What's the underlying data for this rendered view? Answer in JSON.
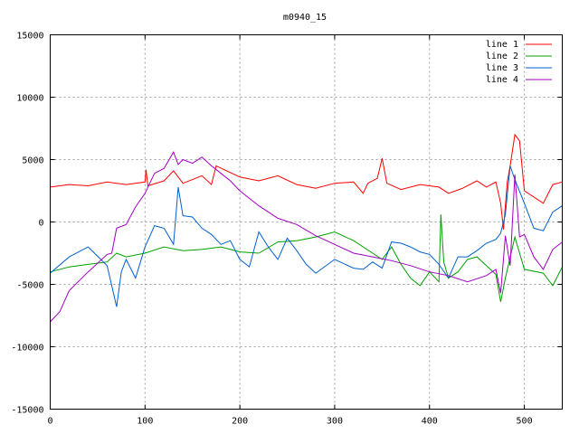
{
  "chart_data": {
    "type": "line",
    "title": "m0940_15",
    "xlabel": "",
    "ylabel": "",
    "xlim": [
      0,
      540
    ],
    "ylim": [
      -15000,
      15000
    ],
    "xticks": [
      0,
      100,
      200,
      300,
      400,
      500
    ],
    "yticks": [
      -15000,
      -10000,
      -5000,
      0,
      5000,
      10000,
      15000
    ],
    "grid": true,
    "legend_position": "top-right",
    "series": [
      {
        "name": "line 1",
        "color": "#ff0000",
        "x": [
          0,
          20,
          40,
          60,
          80,
          100,
          101,
          103,
          120,
          130,
          140,
          160,
          170,
          175,
          200,
          220,
          240,
          260,
          280,
          300,
          320,
          330,
          335,
          345,
          350,
          355,
          370,
          390,
          410,
          420,
          435,
          450,
          460,
          470,
          475,
          478,
          482,
          485,
          490,
          495,
          500,
          520,
          530,
          540
        ],
        "y": [
          2800,
          3000,
          2900,
          3200,
          3000,
          3200,
          4200,
          2900,
          3300,
          4100,
          3100,
          3700,
          3000,
          4500,
          3600,
          3300,
          3700,
          3000,
          2700,
          3100,
          3200,
          2300,
          3100,
          3500,
          5100,
          3100,
          2600,
          3000,
          2800,
          2300,
          2700,
          3300,
          2800,
          3200,
          1500,
          -600,
          3200,
          4500,
          7000,
          6500,
          2500,
          1500,
          3000,
          3200
        ]
      },
      {
        "name": "line 2",
        "color": "#00a000",
        "x": [
          0,
          20,
          40,
          60,
          70,
          80,
          100,
          120,
          140,
          160,
          180,
          200,
          220,
          240,
          260,
          280,
          300,
          320,
          340,
          350,
          360,
          370,
          380,
          390,
          400,
          410,
          412,
          415,
          420,
          430,
          440,
          450,
          460,
          470,
          475,
          480,
          490,
          500,
          520,
          530,
          540
        ],
        "y": [
          -4000,
          -3600,
          -3400,
          -3200,
          -2500,
          -2800,
          -2500,
          -2000,
          -2300,
          -2200,
          -2000,
          -2400,
          -2500,
          -1600,
          -1500,
          -1200,
          -800,
          -1500,
          -2500,
          -3000,
          -2000,
          -3400,
          -4500,
          -5100,
          -4000,
          -4800,
          600,
          -3200,
          -4500,
          -4000,
          -3000,
          -2800,
          -3500,
          -4200,
          -6400,
          -4500,
          -1200,
          -3800,
          -4100,
          -5100,
          -3600
        ]
      },
      {
        "name": "line 3",
        "color": "#0060d0",
        "x": [
          0,
          20,
          40,
          60,
          70,
          75,
          80,
          90,
          100,
          110,
          120,
          130,
          135,
          140,
          150,
          160,
          170,
          180,
          190,
          200,
          210,
          220,
          230,
          240,
          250,
          260,
          270,
          280,
          300,
          320,
          330,
          340,
          350,
          360,
          370,
          380,
          390,
          400,
          410,
          420,
          430,
          440,
          450,
          460,
          470,
          475,
          480,
          485,
          490,
          500,
          510,
          520,
          530,
          540
        ],
        "y": [
          -4100,
          -2800,
          -2000,
          -3500,
          -6800,
          -4000,
          -3000,
          -4500,
          -2000,
          -300,
          -500,
          -1800,
          2800,
          500,
          400,
          -500,
          -1000,
          -1800,
          -1500,
          -3000,
          -3600,
          -800,
          -2000,
          -3000,
          -1300,
          -2300,
          -3400,
          -4100,
          -3000,
          -3700,
          -3800,
          -3200,
          -3700,
          -1600,
          -1700,
          -2000,
          -2400,
          -2600,
          -3400,
          -4500,
          -2800,
          -2800,
          -2300,
          -1700,
          -1400,
          -900,
          600,
          4500,
          3400,
          1500,
          -500,
          -700,
          800,
          1300
        ]
      },
      {
        "name": "line 4",
        "color": "#a000c0",
        "x": [
          0,
          10,
          20,
          40,
          60,
          65,
          70,
          80,
          90,
          100,
          110,
          120,
          130,
          135,
          140,
          150,
          160,
          170,
          180,
          190,
          200,
          220,
          240,
          260,
          280,
          300,
          320,
          340,
          360,
          380,
          400,
          420,
          440,
          460,
          470,
          475,
          480,
          485,
          490,
          495,
          500,
          510,
          520,
          530,
          540
        ],
        "y": [
          -8000,
          -7200,
          -5500,
          -4000,
          -2600,
          -2500,
          -500,
          -200,
          1200,
          2300,
          3900,
          4300,
          5600,
          4600,
          5000,
          4700,
          5200,
          4500,
          3900,
          3300,
          2500,
          1300,
          300,
          -200,
          -1100,
          -1800,
          -2500,
          -2800,
          -3100,
          -3500,
          -4000,
          -4300,
          -4800,
          -4300,
          -3800,
          -5700,
          -1100,
          -3500,
          3800,
          -1200,
          -1000,
          -2800,
          -3800,
          -2200,
          -1600
        ]
      }
    ]
  }
}
